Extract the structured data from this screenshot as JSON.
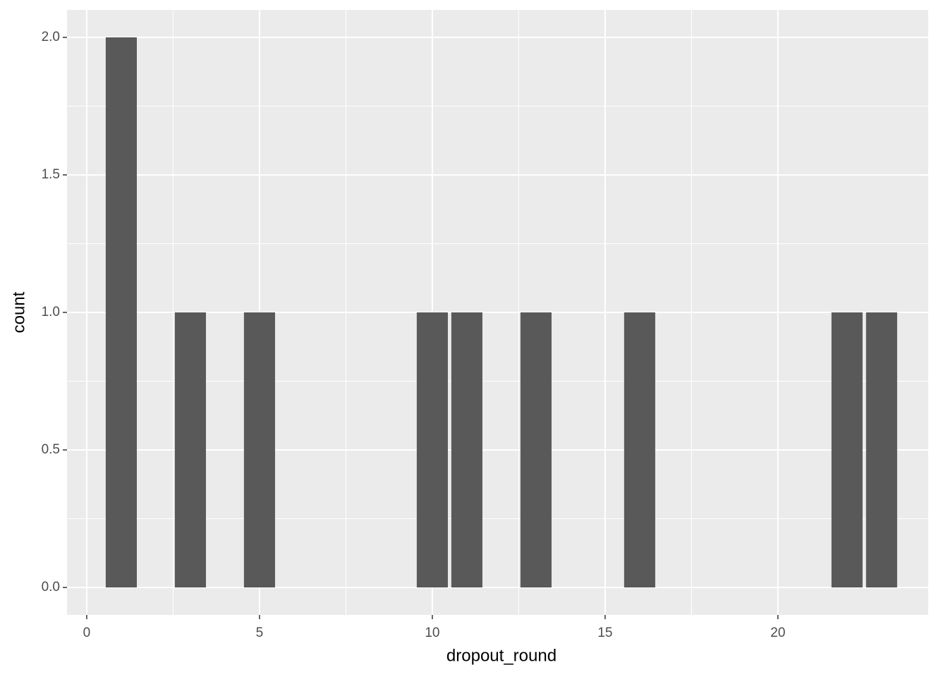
{
  "chart_data": {
    "type": "bar",
    "x_label": "dropout_round",
    "y_label": "count",
    "x": [
      1,
      3,
      5,
      10,
      11,
      13,
      16,
      22,
      23
    ],
    "values": [
      2,
      1,
      1,
      1,
      1,
      1,
      1,
      1,
      1
    ],
    "color": "#595959",
    "xlim": [
      -0.57,
      24.35
    ],
    "xticks": [
      0,
      5,
      10,
      15,
      20
    ],
    "ylim": [
      -0.1,
      2.1
    ],
    "yticks": [
      {
        "value": 0,
        "label": "0.0"
      },
      {
        "value": 0.5,
        "label": "0.5"
      },
      {
        "value": 1,
        "label": "1.0"
      },
      {
        "value": 1.5,
        "label": "1.5"
      },
      {
        "value": 2,
        "label": "2.0"
      }
    ],
    "grid": true
  }
}
